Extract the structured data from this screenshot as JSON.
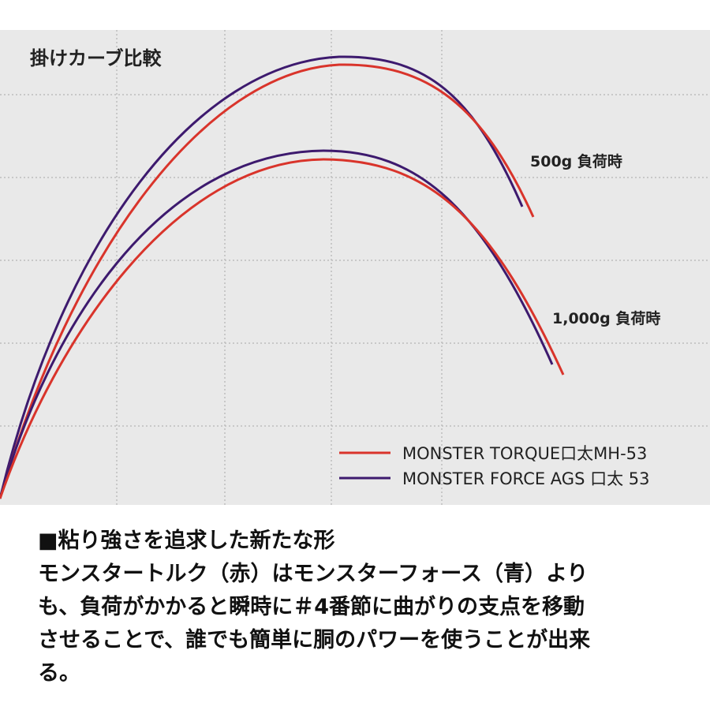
{
  "chart": {
    "title": "掛けカーブ比較",
    "load_labels": [
      "500g 負荷時",
      "1,000g 負荷時"
    ],
    "legend": [
      "MONSTER TORQUE口太MH-53",
      "MONSTER FORCE AGS 口太 53"
    ]
  },
  "description": {
    "heading": "■粘り強さを追求した新たな形",
    "lines": [
      "モンスタートルク（赤）はモンスターフォース（青）より",
      "も、負荷がかかると瞬時に＃4番節に曲がりの支点を移動",
      "させることで、誰でも簡単に胴のパワーを使うことが出来",
      "る。"
    ]
  }
}
